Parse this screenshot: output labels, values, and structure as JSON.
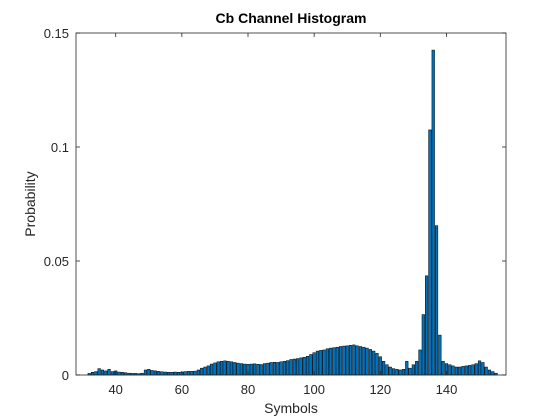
{
  "chart_data": {
    "type": "bar",
    "title": "Cb Channel Histogram",
    "xlabel": "Symbols",
    "ylabel": "Probability",
    "xlim": [
      28,
      158
    ],
    "ylim": [
      0,
      0.15
    ],
    "xticks": [
      40,
      60,
      80,
      100,
      120,
      140
    ],
    "yticks": [
      0,
      0.05,
      0.1,
      0.15
    ],
    "ytick_labels": [
      "0",
      "0.05",
      "0.1",
      "0.15"
    ],
    "grid": false,
    "legend": "none",
    "bar_color": "#0072BD",
    "edge_color": "#000000",
    "x": [
      32,
      33,
      34,
      35,
      36,
      37,
      38,
      39,
      40,
      41,
      42,
      43,
      44,
      45,
      46,
      47,
      48,
      49,
      50,
      51,
      52,
      53,
      54,
      55,
      56,
      57,
      58,
      59,
      60,
      61,
      62,
      63,
      64,
      65,
      66,
      67,
      68,
      69,
      70,
      71,
      72,
      73,
      74,
      75,
      76,
      77,
      78,
      79,
      80,
      81,
      82,
      83,
      84,
      85,
      86,
      87,
      88,
      89,
      90,
      91,
      92,
      93,
      94,
      95,
      96,
      97,
      98,
      99,
      100,
      101,
      102,
      103,
      104,
      105,
      106,
      107,
      108,
      109,
      110,
      111,
      112,
      113,
      114,
      115,
      116,
      117,
      118,
      119,
      120,
      121,
      122,
      123,
      124,
      125,
      126,
      127,
      128,
      129,
      130,
      131,
      132,
      133,
      134,
      135,
      136,
      137,
      138,
      139,
      140,
      141,
      142,
      143,
      144,
      145,
      146,
      147,
      148,
      149,
      150,
      151,
      152,
      153,
      154,
      155
    ],
    "values": [
      0.0007,
      0.0012,
      0.0015,
      0.0028,
      0.0022,
      0.0018,
      0.0025,
      0.0015,
      0.0018,
      0.0013,
      0.0012,
      0.001,
      0.0008,
      0.0007,
      0.0007,
      0.0006,
      0.0008,
      0.0022,
      0.0025,
      0.002,
      0.0018,
      0.0016,
      0.0014,
      0.0013,
      0.0012,
      0.0012,
      0.0013,
      0.0012,
      0.0013,
      0.0015,
      0.0016,
      0.0016,
      0.0017,
      0.0022,
      0.003,
      0.0035,
      0.004,
      0.0048,
      0.0053,
      0.0058,
      0.006,
      0.0062,
      0.006,
      0.0058,
      0.0055,
      0.0052,
      0.005,
      0.0048,
      0.0047,
      0.0048,
      0.0049,
      0.0047,
      0.0046,
      0.005,
      0.0052,
      0.0055,
      0.0056,
      0.0055,
      0.0058,
      0.006,
      0.0063,
      0.0068,
      0.007,
      0.0072,
      0.0075,
      0.0078,
      0.0082,
      0.009,
      0.0098,
      0.0105,
      0.0108,
      0.011,
      0.0115,
      0.0118,
      0.012,
      0.0122,
      0.0125,
      0.0127,
      0.0128,
      0.013,
      0.0132,
      0.0128,
      0.0125,
      0.0122,
      0.0118,
      0.0112,
      0.0105,
      0.0095,
      0.008,
      0.006,
      0.0045,
      0.0035,
      0.0028,
      0.0025,
      0.0022,
      0.0025,
      0.006,
      0.003,
      0.0045,
      0.006,
      0.011,
      0.0265,
      0.0435,
      0.1075,
      0.1425,
      0.0655,
      0.0175,
      0.006,
      0.005,
      0.0045,
      0.004,
      0.0035,
      0.0035,
      0.0038,
      0.004,
      0.0042,
      0.0045,
      0.005,
      0.0062,
      0.0055,
      0.0035,
      0.0022,
      0.0015,
      0.0008
    ]
  }
}
